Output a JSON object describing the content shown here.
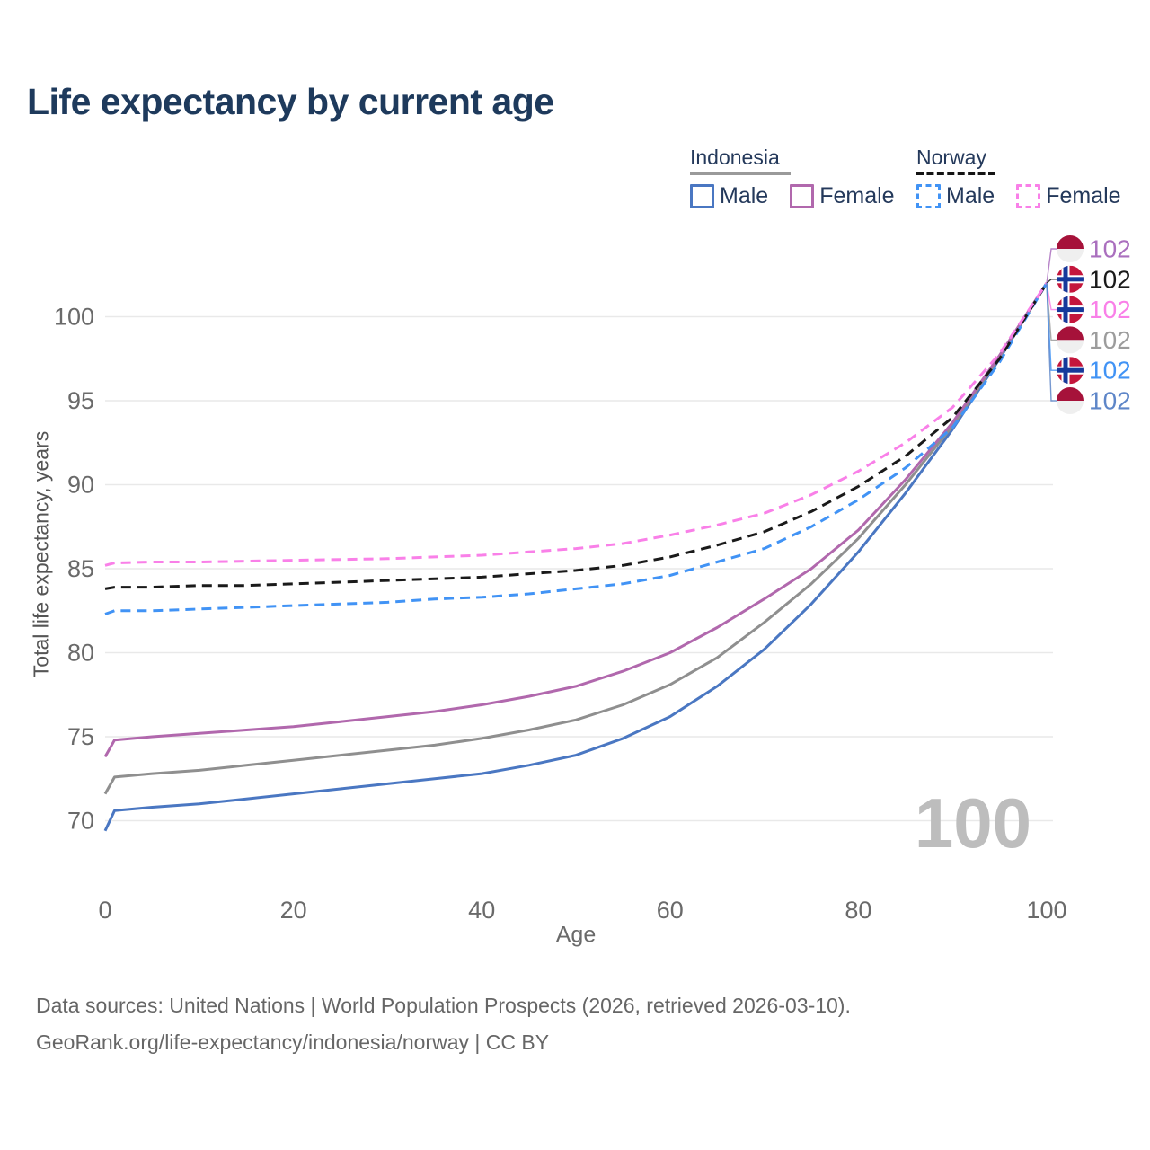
{
  "title": "Life expectancy by current age",
  "legend": {
    "groups": [
      {
        "name": "Indonesia",
        "line_style": "solid",
        "underline_color": "#9a9a9a",
        "items": [
          {
            "label": "Male",
            "color": "#4a77c2"
          },
          {
            "label": "Female",
            "color": "#b168ad"
          }
        ]
      },
      {
        "name": "Norway",
        "line_style": "dashed",
        "underline_color": "#141414",
        "items": [
          {
            "label": "Male",
            "color": "#4193f5"
          },
          {
            "label": "Female",
            "color": "#f980e8"
          }
        ]
      }
    ]
  },
  "chart_data": {
    "type": "line",
    "title": "Life expectancy by current age",
    "xlabel": "Age",
    "ylabel": "Total life expectancy, years",
    "xlim": [
      0,
      100
    ],
    "ylim": [
      68,
      103
    ],
    "xticks": [
      0,
      20,
      40,
      60,
      80,
      100
    ],
    "yticks": [
      70,
      75,
      80,
      85,
      90,
      95,
      100
    ],
    "grid": "horizontal",
    "legend_position": "top-right",
    "ages": [
      0,
      1,
      5,
      10,
      15,
      20,
      25,
      30,
      35,
      40,
      45,
      50,
      55,
      60,
      65,
      70,
      75,
      80,
      85,
      90,
      95,
      100
    ],
    "series": [
      {
        "name": "Indonesia — Male",
        "country": "indonesia",
        "color": "#4a77c2",
        "dash": "solid",
        "values": [
          69.4,
          70.6,
          70.8,
          71.0,
          71.3,
          71.6,
          71.9,
          72.2,
          72.5,
          72.8,
          73.3,
          73.9,
          74.9,
          76.2,
          78.0,
          80.2,
          82.9,
          86.0,
          89.5,
          93.3,
          97.5,
          102
        ]
      },
      {
        "name": "Indonesia",
        "country": "indonesia",
        "color": "#8f8f8f",
        "dash": "solid",
        "values": [
          71.6,
          72.6,
          72.8,
          73.0,
          73.3,
          73.6,
          73.9,
          74.2,
          74.5,
          74.9,
          75.4,
          76.0,
          76.9,
          78.1,
          79.7,
          81.8,
          84.1,
          86.8,
          90.0,
          93.5,
          97.6,
          102
        ]
      },
      {
        "name": "Indonesia — Female",
        "country": "indonesia",
        "color": "#b168ad",
        "dash": "solid",
        "values": [
          73.8,
          74.8,
          75.0,
          75.2,
          75.4,
          75.6,
          75.9,
          76.2,
          76.5,
          76.9,
          77.4,
          78.0,
          78.9,
          80.0,
          81.5,
          83.2,
          85.0,
          87.3,
          90.3,
          93.7,
          97.7,
          102
        ]
      },
      {
        "name": "Norway — Male",
        "country": "norway",
        "color": "#4193f5",
        "dash": "dashed",
        "values": [
          82.3,
          82.5,
          82.5,
          82.6,
          82.7,
          82.8,
          82.9,
          83.0,
          83.2,
          83.3,
          83.5,
          83.8,
          84.1,
          84.6,
          85.4,
          86.2,
          87.5,
          89.1,
          91.0,
          93.4,
          97.3,
          102
        ]
      },
      {
        "name": "Norway",
        "country": "norway",
        "color": "#1a1a1a",
        "dash": "dashed",
        "values": [
          83.8,
          83.9,
          83.9,
          84.0,
          84.0,
          84.1,
          84.2,
          84.3,
          84.4,
          84.5,
          84.7,
          84.9,
          85.2,
          85.7,
          86.4,
          87.2,
          88.4,
          89.9,
          91.7,
          94.0,
          97.5,
          102
        ]
      },
      {
        "name": "Norway — Female",
        "country": "norway",
        "color": "#f980e8",
        "dash": "dashed",
        "values": [
          85.2,
          85.35,
          85.4,
          85.4,
          85.45,
          85.5,
          85.55,
          85.6,
          85.7,
          85.8,
          86.0,
          86.2,
          86.5,
          87.0,
          87.6,
          88.3,
          89.4,
          90.8,
          92.5,
          94.6,
          97.8,
          102
        ]
      }
    ],
    "end_labels": [
      {
        "value": "102",
        "series": "Indonesia — Female",
        "flag": "indonesia",
        "color": "#aa6fbe"
      },
      {
        "value": "102",
        "series": "Norway",
        "flag": "norway",
        "color": "#1a1a1a"
      },
      {
        "value": "102",
        "series": "Norway — Female",
        "flag": "norway",
        "color": "#f980e8"
      },
      {
        "value": "102",
        "series": "Indonesia",
        "flag": "indonesia",
        "color": "#9c9c9c"
      },
      {
        "value": "102",
        "series": "Norway — Male",
        "flag": "norway",
        "color": "#4193f5"
      },
      {
        "value": "102",
        "series": "Indonesia — Male",
        "flag": "indonesia",
        "color": "#5e86c8"
      }
    ],
    "watermark": "100"
  },
  "colors": {
    "title": "#1e3a5c",
    "grid": "#e9e9e9",
    "tick_label": "#6a6a6a",
    "watermark": "#bdbdbd",
    "flag_indonesia_red": "#a6123a",
    "flag_indonesia_white": "#efefef",
    "flag_norway_red": "#c4163c",
    "flag_norway_blue": "#16399b",
    "flag_norway_white": "#ffffff"
  },
  "footer": {
    "line1": "Data sources: United Nations | World Population Prospects (2026, retrieved 2026-03-10).",
    "line2": "GeoRank.org/life-expectancy/indonesia/norway | CC BY"
  }
}
